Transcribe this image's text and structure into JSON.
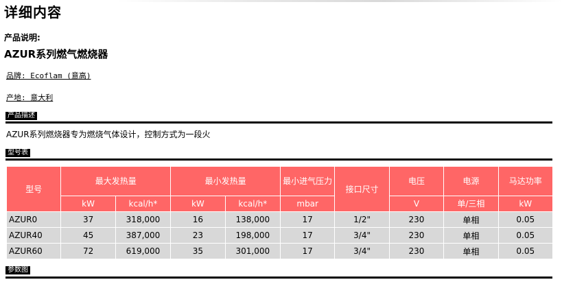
{
  "page": {
    "title": "详细内容",
    "desc_label": "产品说明:",
    "product_name": "AZUR系列燃气燃烧器",
    "brand": "品牌: Ecoflam (意高)",
    "origin": "产地: 意大利",
    "section_description": "产品描述",
    "description": "AZUR系列燃烧器专为燃烧气体设计，控制方式为一段火",
    "section_models": "型号表",
    "section_params": "参数图"
  },
  "table": {
    "headers": {
      "model": "型号",
      "max_heat": "最大发热量",
      "min_heat": "最小发热量",
      "min_gas_pressure": "最小进气压力",
      "connection": "接口尺寸",
      "voltage": "电压",
      "power_supply": "电源",
      "motor_power": "马达功率"
    },
    "units": {
      "max_kw": "kW",
      "max_kcal": "kcal/h*",
      "min_kw": "kW",
      "min_kcal": "kcal/h*",
      "pressure": "mbar",
      "voltage": "V",
      "power_supply": "单/三相",
      "motor": "kW"
    },
    "rows": [
      {
        "model": "AZUR0",
        "max_kw": "37",
        "max_kcal": "318,000",
        "min_kw": "16",
        "min_kcal": "138,000",
        "pressure": "17",
        "connection": "1/2\"",
        "voltage": "230",
        "power_supply": "单相",
        "motor": "0.05"
      },
      {
        "model": "AZUR40",
        "max_kw": "45",
        "max_kcal": "387,000",
        "min_kw": "23",
        "min_kcal": "198,000",
        "pressure": "17",
        "connection": "3/4\"",
        "voltage": "230",
        "power_supply": "单相",
        "motor": "0.05"
      },
      {
        "model": "AZUR60",
        "max_kw": "72",
        "max_kcal": "619,000",
        "min_kw": "35",
        "min_kcal": "301,000",
        "pressure": "17",
        "connection": "3/4\"",
        "voltage": "230",
        "power_supply": "单相",
        "motor": "0.05"
      }
    ]
  },
  "colors": {
    "header_bg": "#ff6666",
    "row_bg": "#d8d8d8",
    "rule": "#000000"
  }
}
